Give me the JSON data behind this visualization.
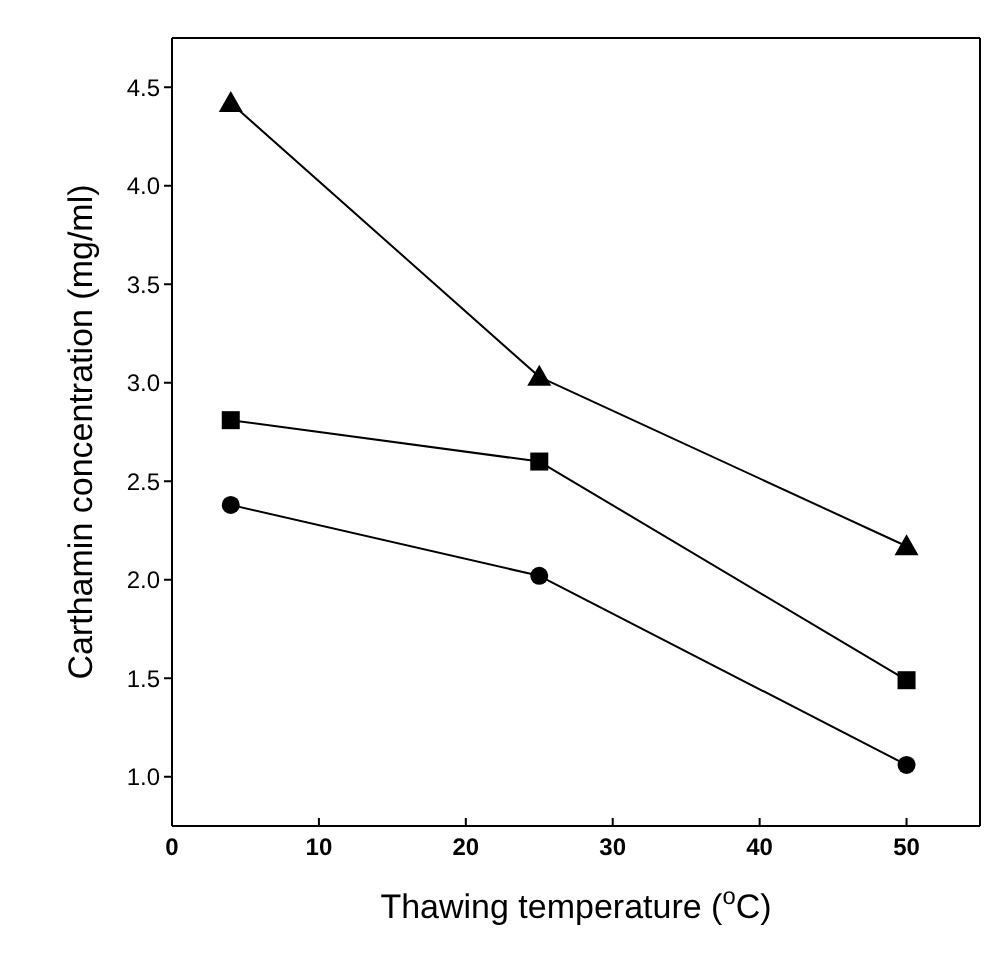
{
  "chart_data": {
    "type": "line",
    "xlabel": "Thawing temperature ($^{o}$C)",
    "ylabel": "Carthamin concentration (mg/ml)",
    "x": [
      4,
      25,
      50
    ],
    "series": [
      {
        "color": "#000000",
        "marker": "triangle",
        "values": [
          4.42,
          3.03,
          2.17
        ]
      },
      {
        "color": "#000000",
        "marker": "square",
        "values": [
          2.81,
          2.6,
          1.49
        ]
      },
      {
        "color": "#000000",
        "marker": "circle",
        "values": [
          2.38,
          2.02,
          1.06
        ]
      }
    ],
    "xlim": [
      0,
      55
    ],
    "xticks": [
      0,
      10,
      20,
      30,
      40,
      50
    ],
    "ylim": [
      0.75,
      4.75
    ],
    "yticks": [
      {
        "value": 1,
        "label": "1.0"
      },
      1.5,
      {
        "value": 2,
        "label": "2.0"
      },
      2.5,
      {
        "value": 3,
        "label": "3.0"
      },
      3.5,
      {
        "value": 4,
        "label": "4.0"
      },
      4.5
    ],
    "grid": false,
    "legend": false,
    "line_style": "solid"
  }
}
